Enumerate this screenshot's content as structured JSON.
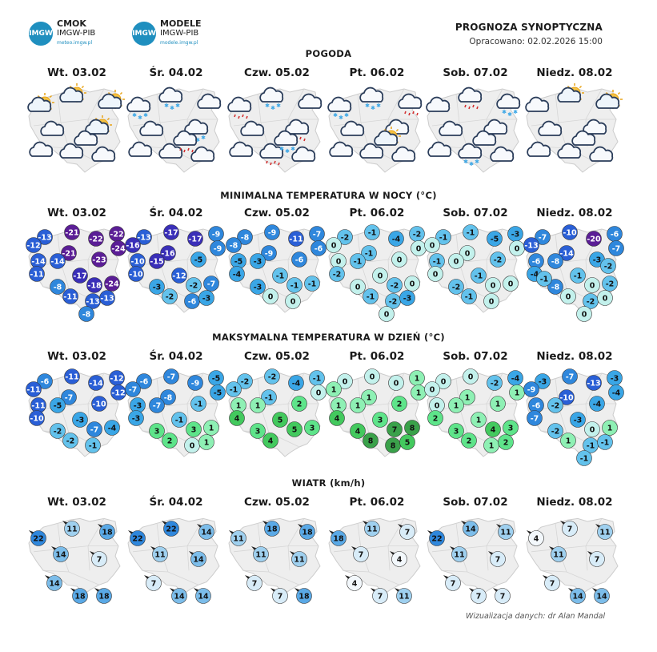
{
  "header": {
    "logo1": {
      "badge": "IMGW",
      "name": "CMOK",
      "org": "IMGW-PIB",
      "url": "meteo.imgw.pl"
    },
    "logo2": {
      "badge": "IMGW",
      "name": "MODELE",
      "org": "IMGW-PIB",
      "url": "modele.imgw.pl"
    },
    "title": "PROGNOZA SYNOPTYCZNA",
    "subtitle": "Opracowano: 02.02.2026 15:00"
  },
  "days": [
    "Wt. 03.02",
    "Śr. 04.02",
    "Czw. 05.02",
    "Pt. 06.02",
    "Sob. 07.02",
    "Niedz. 08.02"
  ],
  "sections": {
    "weather": "POGODA",
    "tmin": "MINIMALNA TEMPERATURA W NOCY (°C)",
    "tmax": "MAKSYMALNA TEMPERATURA W DZIEŃ (°C)",
    "wind": "WIATR (km/h)"
  },
  "weather_icons": [
    [
      "partly-sunny-icon",
      "partly-sunny-icon",
      "partly-sunny-icon",
      "cloud-icon",
      "partly-sunny-icon",
      "cloud-icon",
      "cloud-icon",
      "cloud-icon",
      "cloud-icon"
    ],
    [
      "cloud-snow-icon",
      "cloud-snow-icon",
      "cloud-icon",
      "cloud-icon",
      "cloud-snow-icon",
      "cloud-icon",
      "cloud-icon",
      "cloud-icon",
      "cloud-rain-icon"
    ],
    [
      "cloud-rain-icon",
      "cloud-snow-icon",
      "cloud-icon",
      "cloud-icon",
      "cloud-rain-icon",
      "cloud-icon",
      "cloud-rain-icon",
      "cloud-icon",
      "cloud-snow-icon"
    ],
    [
      "cloud-snow-icon",
      "cloud-snow-icon",
      "cloud-rain-icon",
      "cloud-icon",
      "cloud-icon",
      "cloud-icon",
      "cloud-icon",
      "cloud-icon",
      "partly-sunny-icon"
    ],
    [
      "cloud-icon",
      "cloud-rain-icon",
      "cloud-snow-icon",
      "cloud-icon",
      "cloud-icon",
      "cloud-icon",
      "cloud-snow-icon",
      "cloud-icon",
      "cloud-icon"
    ],
    [
      "cloud-icon",
      "partly-sunny-icon",
      "partly-sunny-icon",
      "cloud-icon",
      "cloud-icon",
      "cloud-icon",
      "cloud-icon",
      "cloud-icon",
      "cloud-icon"
    ]
  ],
  "tmin": [
    [
      -13,
      -21,
      -22,
      -22,
      -12,
      -21,
      -24,
      -14,
      -14,
      -23,
      -11,
      -17,
      -8,
      -18,
      -24,
      -11,
      -13,
      -13,
      -8
    ],
    [
      -13,
      -17,
      -17,
      -9,
      -16,
      -16,
      -9,
      -10,
      -15,
      -5,
      -10,
      -12,
      -3,
      -2,
      -7,
      -2,
      -6,
      -3
    ],
    [
      -8,
      -9,
      -11,
      -7,
      -8,
      -9,
      -6,
      -5,
      -3,
      -6,
      -4,
      -1,
      -3,
      -1,
      -1,
      0,
      0
    ],
    [
      -2,
      -1,
      -4,
      -2,
      0,
      -1,
      0,
      0,
      -1,
      0,
      -2,
      0,
      0,
      -2,
      0,
      -1,
      -2,
      -3,
      0
    ],
    [
      -1,
      -1,
      -5,
      -3,
      0,
      0,
      0,
      -1,
      0,
      -2,
      0,
      -1,
      -2,
      0,
      0,
      -1,
      0
    ],
    [
      -7,
      -10,
      -20,
      -6,
      -13,
      -14,
      -7,
      -6,
      -8,
      -3,
      -4,
      -1,
      -8,
      0,
      -2,
      0,
      -2,
      0,
      0,
      -1,
      -2
    ]
  ],
  "tmax": [
    [
      -6,
      -11,
      -14,
      -12,
      -11,
      -7,
      -12,
      -11,
      -5,
      -10,
      -10,
      -3,
      -2,
      -7,
      -4,
      -2,
      -1
    ],
    [
      -6,
      -7,
      -9,
      -5,
      -7,
      -8,
      -5,
      -3,
      -7,
      -1,
      -3,
      -1,
      3,
      3,
      1,
      2,
      0,
      1
    ],
    [
      -2,
      -2,
      -4,
      -1,
      -1,
      -1,
      0,
      1,
      1,
      2,
      4,
      5,
      3,
      5,
      3,
      4
    ],
    [
      0,
      0,
      0,
      1,
      1,
      1,
      1,
      1,
      1,
      2,
      4,
      3,
      4,
      7,
      8,
      8,
      8,
      5
    ],
    [
      0,
      0,
      -2,
      -4,
      0,
      1,
      1,
      0,
      1,
      1,
      2,
      1,
      3,
      4,
      3,
      2,
      1,
      2
    ],
    [
      -3,
      -7,
      -13,
      -3,
      -9,
      -10,
      -4,
      -6,
      -2,
      -4,
      -7,
      -3,
      -2,
      0,
      1,
      1,
      -1,
      -1,
      -1
    ]
  ],
  "wind": [
    [
      22,
      11,
      18,
      14,
      7,
      14,
      18,
      18
    ],
    [
      22,
      22,
      14,
      11,
      14,
      7,
      14,
      14
    ],
    [
      11,
      18,
      18,
      11,
      11,
      7,
      7,
      18
    ],
    [
      18,
      11,
      7,
      7,
      4,
      4,
      7,
      11
    ],
    [
      22,
      14,
      11,
      11,
      7,
      7,
      7,
      7
    ],
    [
      4,
      7,
      11,
      11,
      7,
      7,
      14,
      14
    ]
  ],
  "credit": "Wizualizacja danych: dr Alan Mandal",
  "colors": {
    "map_fill": "#eeeeee",
    "map_stroke": "#cccccc",
    "cold_purple": "#6a1b9a",
    "cold_blue": "#1f5fd0",
    "mid_blue": "#3aa0e0",
    "light_cyan": "#bff1ee",
    "warm_green": "#4ad35a"
  }
}
